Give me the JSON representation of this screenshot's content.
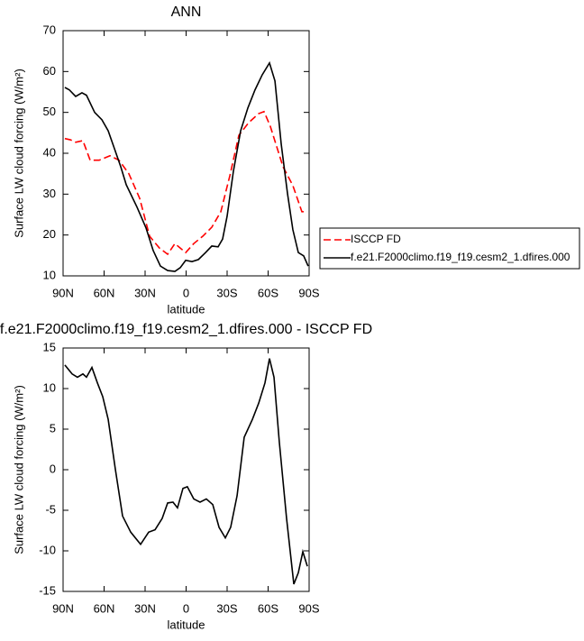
{
  "chart_data": [
    {
      "type": "line",
      "title": "ANN",
      "xlabel": "latitude",
      "ylabel": "Surface LW cloud forcing (W/m²)",
      "xlim": [
        90,
        -90
      ],
      "ylim": [
        10,
        70
      ],
      "xticks": [
        {
          "value": 90,
          "label": "90N"
        },
        {
          "value": 60,
          "label": "60N"
        },
        {
          "value": 30,
          "label": "30N"
        },
        {
          "value": 0,
          "label": "0"
        },
        {
          "value": -30,
          "label": "30S"
        },
        {
          "value": -60,
          "label": "60S"
        },
        {
          "value": -90,
          "label": "90S"
        }
      ],
      "yticks": [
        10,
        20,
        30,
        40,
        50,
        60,
        70
      ],
      "legend": "right",
      "series": [
        {
          "name": "ISCCP FD",
          "color": "#ff0000",
          "line_style": "dashed",
          "x": [
            88.7,
            84.7,
            80.8,
            75.5,
            70.2,
            63.6,
            55.7,
            49.1,
            41.9,
            34,
            26.7,
            19.5,
            13.5,
            8.2,
            4.3,
            0.3,
            -5.6,
            -12.2,
            -18.8,
            -25.4,
            -32,
            -38.6,
            -45.8,
            -53.1,
            -57,
            -61.6,
            -70.9,
            -78.1,
            -84.7,
            -88.7
          ],
          "values": [
            43.6,
            43.3,
            42.7,
            43.1,
            38.3,
            38.3,
            39.4,
            38.3,
            35,
            29,
            19.7,
            16.8,
            15.3,
            17.9,
            16.8,
            15.7,
            17.9,
            19.7,
            21.9,
            25.7,
            34.5,
            44.4,
            47.5,
            49.7,
            50.2,
            46.6,
            36.7,
            32.1,
            25.7,
            25.7
          ]
        },
        {
          "name": "f.e21.F2000climo.f19_f19.cesm2_1.dfires.000",
          "color": "#000000",
          "line_style": "solid",
          "x": [
            88.7,
            85.4,
            80.8,
            76.2,
            72.9,
            66.9,
            61.6,
            57,
            52.4,
            47.8,
            43.8,
            35.9,
            29.3,
            24.1,
            18.8,
            13.5,
            8.2,
            4.3,
            0.3,
            -4.3,
            -9,
            -14.2,
            -18.8,
            -23.4,
            -26.7,
            -30,
            -34.6,
            -39.9,
            -45.2,
            -50.4,
            -55.7,
            -61,
            -65,
            -69.6,
            -74.2,
            -78.1,
            -82.1,
            -86,
            -89.3
          ],
          "values": [
            56.1,
            55.5,
            53.9,
            54.8,
            54.2,
            50,
            48.2,
            45.5,
            41.1,
            36.7,
            32.3,
            26.8,
            21.7,
            16.2,
            12.4,
            11.3,
            11.1,
            12,
            13.8,
            13.5,
            14,
            15.7,
            17.3,
            17.1,
            19,
            24.6,
            35.6,
            45.5,
            51.1,
            55.5,
            59.2,
            62.1,
            57.7,
            42.2,
            30.1,
            21.3,
            15.7,
            14.9,
            12.4
          ]
        }
      ]
    },
    {
      "type": "line",
      "title": "f.e21.F2000climo.f19_f19.cesm2_1.dfires.000 - ISCCP FD",
      "xlabel": "latitude",
      "ylabel": "Surface LW cloud forcing (W/m²)",
      "xlim": [
        90,
        -90
      ],
      "ylim": [
        -15,
        15
      ],
      "xticks": [
        {
          "value": 90,
          "label": "90N"
        },
        {
          "value": 60,
          "label": "60N"
        },
        {
          "value": 30,
          "label": "30N"
        },
        {
          "value": 0,
          "label": "0"
        },
        {
          "value": -30,
          "label": "30S"
        },
        {
          "value": -60,
          "label": "60S"
        },
        {
          "value": -90,
          "label": "90S"
        }
      ],
      "yticks": [
        -15,
        -10,
        -5,
        0,
        5,
        10,
        15
      ],
      "series": [
        {
          "color": "#000000",
          "line_style": "solid",
          "x": [
            88.7,
            83.4,
            79.5,
            75.5,
            72.9,
            68.9,
            64.9,
            61,
            57,
            51.8,
            46.5,
            40.5,
            33.3,
            27.4,
            22.7,
            17.5,
            13.5,
            9.6,
            6.3,
            2.3,
            -0.9,
            -5.6,
            -10.2,
            -14.8,
            -19.5,
            -24.1,
            -28.7,
            -32.6,
            -37.3,
            -42.5,
            -48.5,
            -53.1,
            -57.7,
            -61,
            -64.3,
            -68.2,
            -73.5,
            -78.8,
            -82.1,
            -85.4,
            -88.7
          ],
          "values": [
            12.9,
            11.8,
            11.4,
            11.8,
            11.4,
            12.6,
            10.7,
            9,
            6.2,
            0.1,
            -5.7,
            -7.7,
            -9.2,
            -7.7,
            -7.4,
            -6,
            -4.1,
            -4,
            -4.7,
            -2.3,
            -2.1,
            -3.6,
            -4,
            -3.6,
            -4.3,
            -7.1,
            -8.4,
            -7.1,
            -3.2,
            4,
            6.2,
            8.2,
            10.7,
            13.7,
            11.4,
            3.4,
            -6,
            -14.1,
            -12.7,
            -10.1,
            -11.9
          ]
        }
      ]
    }
  ]
}
